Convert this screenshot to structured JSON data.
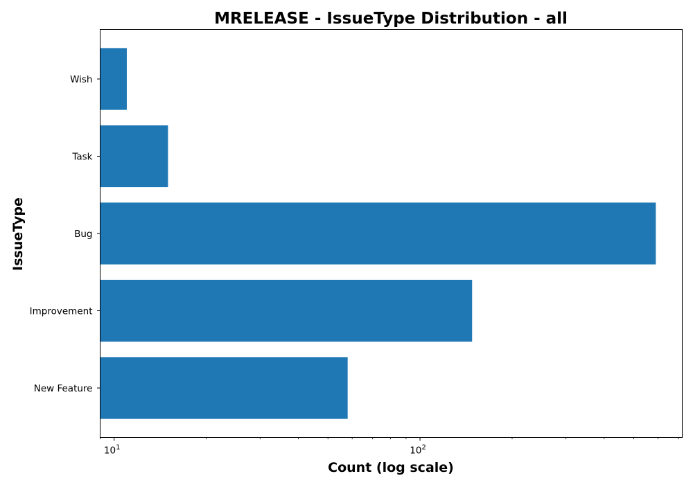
{
  "chart_data": {
    "type": "bar",
    "orientation": "horizontal",
    "title": "MRELEASE - IssueType Distribution - all",
    "xlabel": "Count (log scale)",
    "ylabel": "IssueType",
    "xscale": "log",
    "xlim": [
      9,
      720
    ],
    "x_ticks": [
      {
        "value": 10,
        "base": "10",
        "exponent": "1"
      },
      {
        "value": 100,
        "base": "10",
        "exponent": "2"
      }
    ],
    "categories": [
      "New Feature",
      "Improvement",
      "Bug",
      "Task",
      "Wish"
    ],
    "values": [
      58,
      148,
      590,
      15,
      11
    ],
    "bar_color": "#1f77b4",
    "grid": false,
    "legend": "none"
  }
}
